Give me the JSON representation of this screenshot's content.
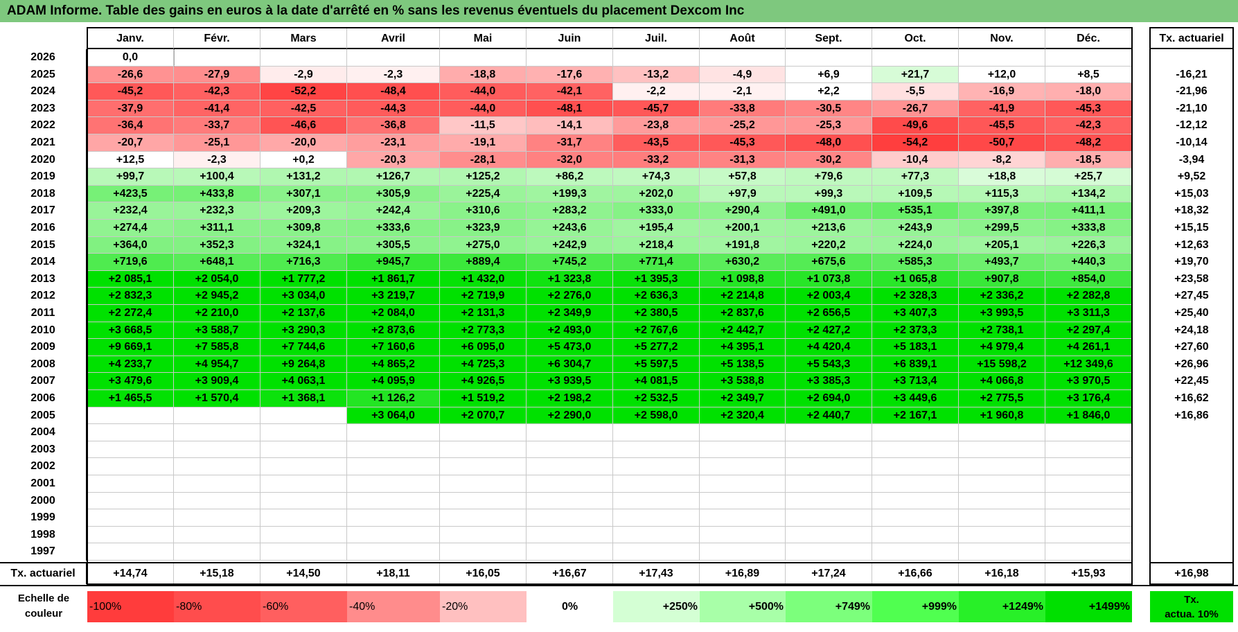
{
  "title": "ADAM Informe. Table des gains en euros à la date d'arrêté en % sans les revenus éventuels du placement Dexcom Inc",
  "months": [
    "Janv.",
    "Févr.",
    "Mars",
    "Avril",
    "Mai",
    "Juin",
    "Juil.",
    "Août",
    "Sept.",
    "Oct.",
    "Nov.",
    "Déc."
  ],
  "tx_header": "Tx. actuariel",
  "rows": [
    {
      "year": "2026",
      "tx": "",
      "cells": [
        "0,0",
        "",
        "",
        "",
        "",
        "",
        "",
        "",
        "",
        "",
        "",
        ""
      ]
    },
    {
      "year": "2025",
      "tx": "-16,21",
      "cells": [
        "-26,6",
        "-27,9",
        "-2,9",
        "-2,3",
        "-18,8",
        "-17,6",
        "-13,2",
        "-4,9",
        "+6,9",
        "+21,7",
        "+12,0",
        "+8,5"
      ]
    },
    {
      "year": "2024",
      "tx": "-21,96",
      "cells": [
        "-45,2",
        "-42,3",
        "-52,2",
        "-48,4",
        "-44,0",
        "-42,1",
        "-2,2",
        "-2,1",
        "+2,2",
        "-5,5",
        "-16,9",
        "-18,0"
      ]
    },
    {
      "year": "2023",
      "tx": "-21,10",
      "cells": [
        "-37,9",
        "-41,4",
        "-42,5",
        "-44,3",
        "-44,0",
        "-48,1",
        "-45,7",
        "-33,8",
        "-30,5",
        "-26,7",
        "-41,9",
        "-45,3"
      ]
    },
    {
      "year": "2022",
      "tx": "-12,12",
      "cells": [
        "-36,4",
        "-33,7",
        "-46,6",
        "-36,8",
        "-11,5",
        "-14,1",
        "-23,8",
        "-25,2",
        "-25,3",
        "-49,6",
        "-45,5",
        "-42,3"
      ]
    },
    {
      "year": "2021",
      "tx": "-10,14",
      "cells": [
        "-20,7",
        "-25,1",
        "-20,0",
        "-23,1",
        "-19,1",
        "-31,7",
        "-43,5",
        "-45,3",
        "-48,0",
        "-54,2",
        "-50,7",
        "-48,2"
      ]
    },
    {
      "year": "2020",
      "tx": "-3,94",
      "cells": [
        "+12,5",
        "-2,3",
        "+0,2",
        "-20,3",
        "-28,1",
        "-32,0",
        "-33,2",
        "-31,3",
        "-30,2",
        "-10,4",
        "-8,2",
        "-18,5"
      ]
    },
    {
      "year": "2019",
      "tx": "+9,52",
      "cells": [
        "+99,7",
        "+100,4",
        "+131,2",
        "+126,7",
        "+125,2",
        "+86,2",
        "+74,3",
        "+57,8",
        "+79,6",
        "+77,3",
        "+18,8",
        "+25,7"
      ]
    },
    {
      "year": "2018",
      "tx": "+15,03",
      "cells": [
        "+423,5",
        "+433,8",
        "+307,1",
        "+305,9",
        "+225,4",
        "+199,3",
        "+202,0",
        "+97,9",
        "+99,3",
        "+109,5",
        "+115,3",
        "+134,2"
      ]
    },
    {
      "year": "2017",
      "tx": "+18,32",
      "cells": [
        "+232,4",
        "+232,3",
        "+209,3",
        "+242,4",
        "+310,6",
        "+283,2",
        "+333,0",
        "+290,4",
        "+491,0",
        "+535,1",
        "+397,8",
        "+411,1"
      ]
    },
    {
      "year": "2016",
      "tx": "+15,15",
      "cells": [
        "+274,4",
        "+311,1",
        "+309,8",
        "+333,6",
        "+323,9",
        "+243,6",
        "+195,4",
        "+200,1",
        "+213,6",
        "+243,9",
        "+299,5",
        "+333,8"
      ]
    },
    {
      "year": "2015",
      "tx": "+12,63",
      "cells": [
        "+364,0",
        "+352,3",
        "+324,1",
        "+305,5",
        "+275,0",
        "+242,9",
        "+218,4",
        "+191,8",
        "+220,2",
        "+224,0",
        "+205,1",
        "+226,3"
      ]
    },
    {
      "year": "2014",
      "tx": "+19,70",
      "cells": [
        "+719,6",
        "+648,1",
        "+716,3",
        "+945,7",
        "+889,4",
        "+745,2",
        "+771,4",
        "+630,2",
        "+675,6",
        "+585,3",
        "+493,7",
        "+440,3"
      ]
    },
    {
      "year": "2013",
      "tx": "+23,58",
      "cells": [
        "+2 085,1",
        "+2 054,0",
        "+1 777,2",
        "+1 861,7",
        "+1 432,0",
        "+1 323,8",
        "+1 395,3",
        "+1 098,8",
        "+1 073,8",
        "+1 065,8",
        "+907,8",
        "+854,0"
      ]
    },
    {
      "year": "2012",
      "tx": "+27,45",
      "cells": [
        "+2 832,3",
        "+2 945,2",
        "+3 034,0",
        "+3 219,7",
        "+2 719,9",
        "+2 276,0",
        "+2 636,3",
        "+2 214,8",
        "+2 003,4",
        "+2 328,3",
        "+2 336,2",
        "+2 282,8"
      ]
    },
    {
      "year": "2011",
      "tx": "+25,40",
      "cells": [
        "+2 272,4",
        "+2 210,0",
        "+2 137,6",
        "+2 084,0",
        "+2 131,3",
        "+2 349,9",
        "+2 380,5",
        "+2 837,6",
        "+2 656,5",
        "+3 407,3",
        "+3 993,5",
        "+3 311,3"
      ]
    },
    {
      "year": "2010",
      "tx": "+24,18",
      "cells": [
        "+3 668,5",
        "+3 588,7",
        "+3 290,3",
        "+2 873,6",
        "+2 773,3",
        "+2 493,0",
        "+2 767,6",
        "+2 442,7",
        "+2 427,2",
        "+2 373,3",
        "+2 738,1",
        "+2 297,4"
      ]
    },
    {
      "year": "2009",
      "tx": "+27,60",
      "cells": [
        "+9 669,1",
        "+7 585,8",
        "+7 744,6",
        "+7 160,6",
        "+6 095,0",
        "+5 473,0",
        "+5 277,2",
        "+4 395,1",
        "+4 420,4",
        "+5 183,1",
        "+4 979,4",
        "+4 261,1"
      ]
    },
    {
      "year": "2008",
      "tx": "+26,96",
      "cells": [
        "+4 233,7",
        "+4 954,7",
        "+9 264,8",
        "+4 865,2",
        "+4 725,3",
        "+6 304,7",
        "+5 597,5",
        "+5 138,5",
        "+5 543,3",
        "+6 839,1",
        "+15 598,2",
        "+12 349,6"
      ]
    },
    {
      "year": "2007",
      "tx": "+22,45",
      "cells": [
        "+3 479,6",
        "+3 909,4",
        "+4 063,1",
        "+4 095,9",
        "+4 926,5",
        "+3 939,5",
        "+4 081,5",
        "+3 538,8",
        "+3 385,3",
        "+3 713,4",
        "+4 066,8",
        "+3 970,5"
      ]
    },
    {
      "year": "2006",
      "tx": "+16,62",
      "cells": [
        "+1 465,5",
        "+1 570,4",
        "+1 368,1",
        "+1 126,2",
        "+1 519,2",
        "+2 198,2",
        "+2 532,5",
        "+2 349,7",
        "+2 694,0",
        "+3 449,6",
        "+2 775,5",
        "+3 176,4"
      ]
    },
    {
      "year": "2005",
      "tx": "+16,86",
      "cells": [
        "",
        "",
        "",
        "+3 064,0",
        "+2 070,7",
        "+2 290,0",
        "+2 598,0",
        "+2 320,4",
        "+2 440,7",
        "+2 167,1",
        "+1 960,8",
        "+1 846,0"
      ]
    },
    {
      "year": "2004",
      "tx": "",
      "cells": [
        "",
        "",
        "",
        "",
        "",
        "",
        "",
        "",
        "",
        "",
        "",
        ""
      ]
    },
    {
      "year": "2003",
      "tx": "",
      "cells": [
        "",
        "",
        "",
        "",
        "",
        "",
        "",
        "",
        "",
        "",
        "",
        ""
      ]
    },
    {
      "year": "2002",
      "tx": "",
      "cells": [
        "",
        "",
        "",
        "",
        "",
        "",
        "",
        "",
        "",
        "",
        "",
        ""
      ]
    },
    {
      "year": "2001",
      "tx": "",
      "cells": [
        "",
        "",
        "",
        "",
        "",
        "",
        "",
        "",
        "",
        "",
        "",
        ""
      ]
    },
    {
      "year": "2000",
      "tx": "",
      "cells": [
        "",
        "",
        "",
        "",
        "",
        "",
        "",
        "",
        "",
        "",
        "",
        ""
      ]
    },
    {
      "year": "1999",
      "tx": "",
      "cells": [
        "",
        "",
        "",
        "",
        "",
        "",
        "",
        "",
        "",
        "",
        "",
        ""
      ]
    },
    {
      "year": "1998",
      "tx": "",
      "cells": [
        "",
        "",
        "",
        "",
        "",
        "",
        "",
        "",
        "",
        "",
        "",
        ""
      ]
    },
    {
      "year": "1997",
      "tx": "",
      "cells": [
        "",
        "",
        "",
        "",
        "",
        "",
        "",
        "",
        "",
        "",
        "",
        ""
      ]
    }
  ],
  "footer": {
    "label": "Tx. actuariel",
    "values": [
      "+14,74",
      "+15,18",
      "+14,50",
      "+18,11",
      "+16,05",
      "+16,67",
      "+17,43",
      "+16,89",
      "+17,24",
      "+16,66",
      "+16,18",
      "+15,93"
    ],
    "total": "+16,98"
  },
  "legend": {
    "label_line1": "Echelle de",
    "label_line2": "couleur",
    "items": [
      {
        "label": "-100%",
        "color": "#ff3c3c",
        "align": "left"
      },
      {
        "label": "-80%",
        "color": "#ff4d4d",
        "align": "left"
      },
      {
        "label": "-60%",
        "color": "#ff5f5f",
        "align": "left"
      },
      {
        "label": "-40%",
        "color": "#ff8c8c",
        "align": "left"
      },
      {
        "label": "-20%",
        "color": "#ffc0c0",
        "align": "left"
      },
      {
        "label": "0%",
        "color": "#ffffff",
        "align": "center"
      },
      {
        "label": "+250%",
        "color": "#d4ffd4",
        "align": "right"
      },
      {
        "label": "+500%",
        "color": "#a8ffa8",
        "align": "right"
      },
      {
        "label": "+749%",
        "color": "#7cff7c",
        "align": "right"
      },
      {
        "label": "+999%",
        "color": "#50ff50",
        "align": "right"
      },
      {
        "label": "+1249%",
        "color": "#28f028",
        "align": "right"
      },
      {
        "label": "+1499%",
        "color": "#00e000",
        "align": "right"
      }
    ],
    "tx_line1": "Tx.",
    "tx_line2": "actua. 10%",
    "tx_color": "#00e000"
  }
}
